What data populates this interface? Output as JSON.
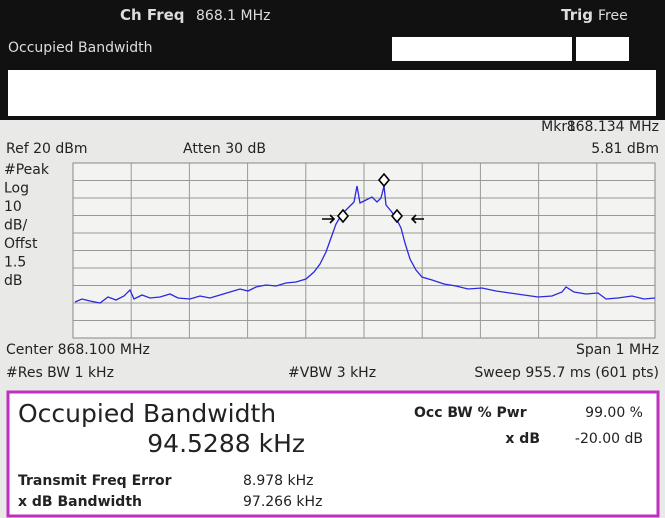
{
  "header": {
    "ch_freq_label": "Ch Freq",
    "ch_freq_value": "868.1 MHz",
    "trig_label": "Trig",
    "trig_value": "Free",
    "mode": "Occupied Bandwidth"
  },
  "display": {
    "marker_label": "Mkr1",
    "marker_freq": "868.134 MHz",
    "marker_value": "5.81 dBm",
    "ref": "Ref 20 dBm",
    "atten": "Atten 30 dB",
    "scale_labels": [
      "#Peak",
      "Log",
      "10",
      "dB/",
      "Offst",
      "1.5",
      "dB"
    ],
    "center": "Center 868.100 MHz",
    "span": "Span 1 MHz",
    "res_bw": "#Res BW 1 kHz",
    "vbw": "#VBW 3 kHz",
    "sweep": "Sweep 955.7 ms (601 pts)"
  },
  "results": {
    "title": "Occupied Bandwidth",
    "occ_bw": "94.5288 kHz",
    "pwr_label": "Occ BW % Pwr",
    "pwr_value": "99.00 %",
    "xdb_label": "x dB",
    "xdb_value": "-20.00 dB",
    "freq_error_label": "Transmit Freq Error",
    "freq_error_value": "8.978 kHz",
    "xdb_bw_label": "x dB Bandwidth",
    "xdb_bw_value": "97.266 kHz"
  }
}
